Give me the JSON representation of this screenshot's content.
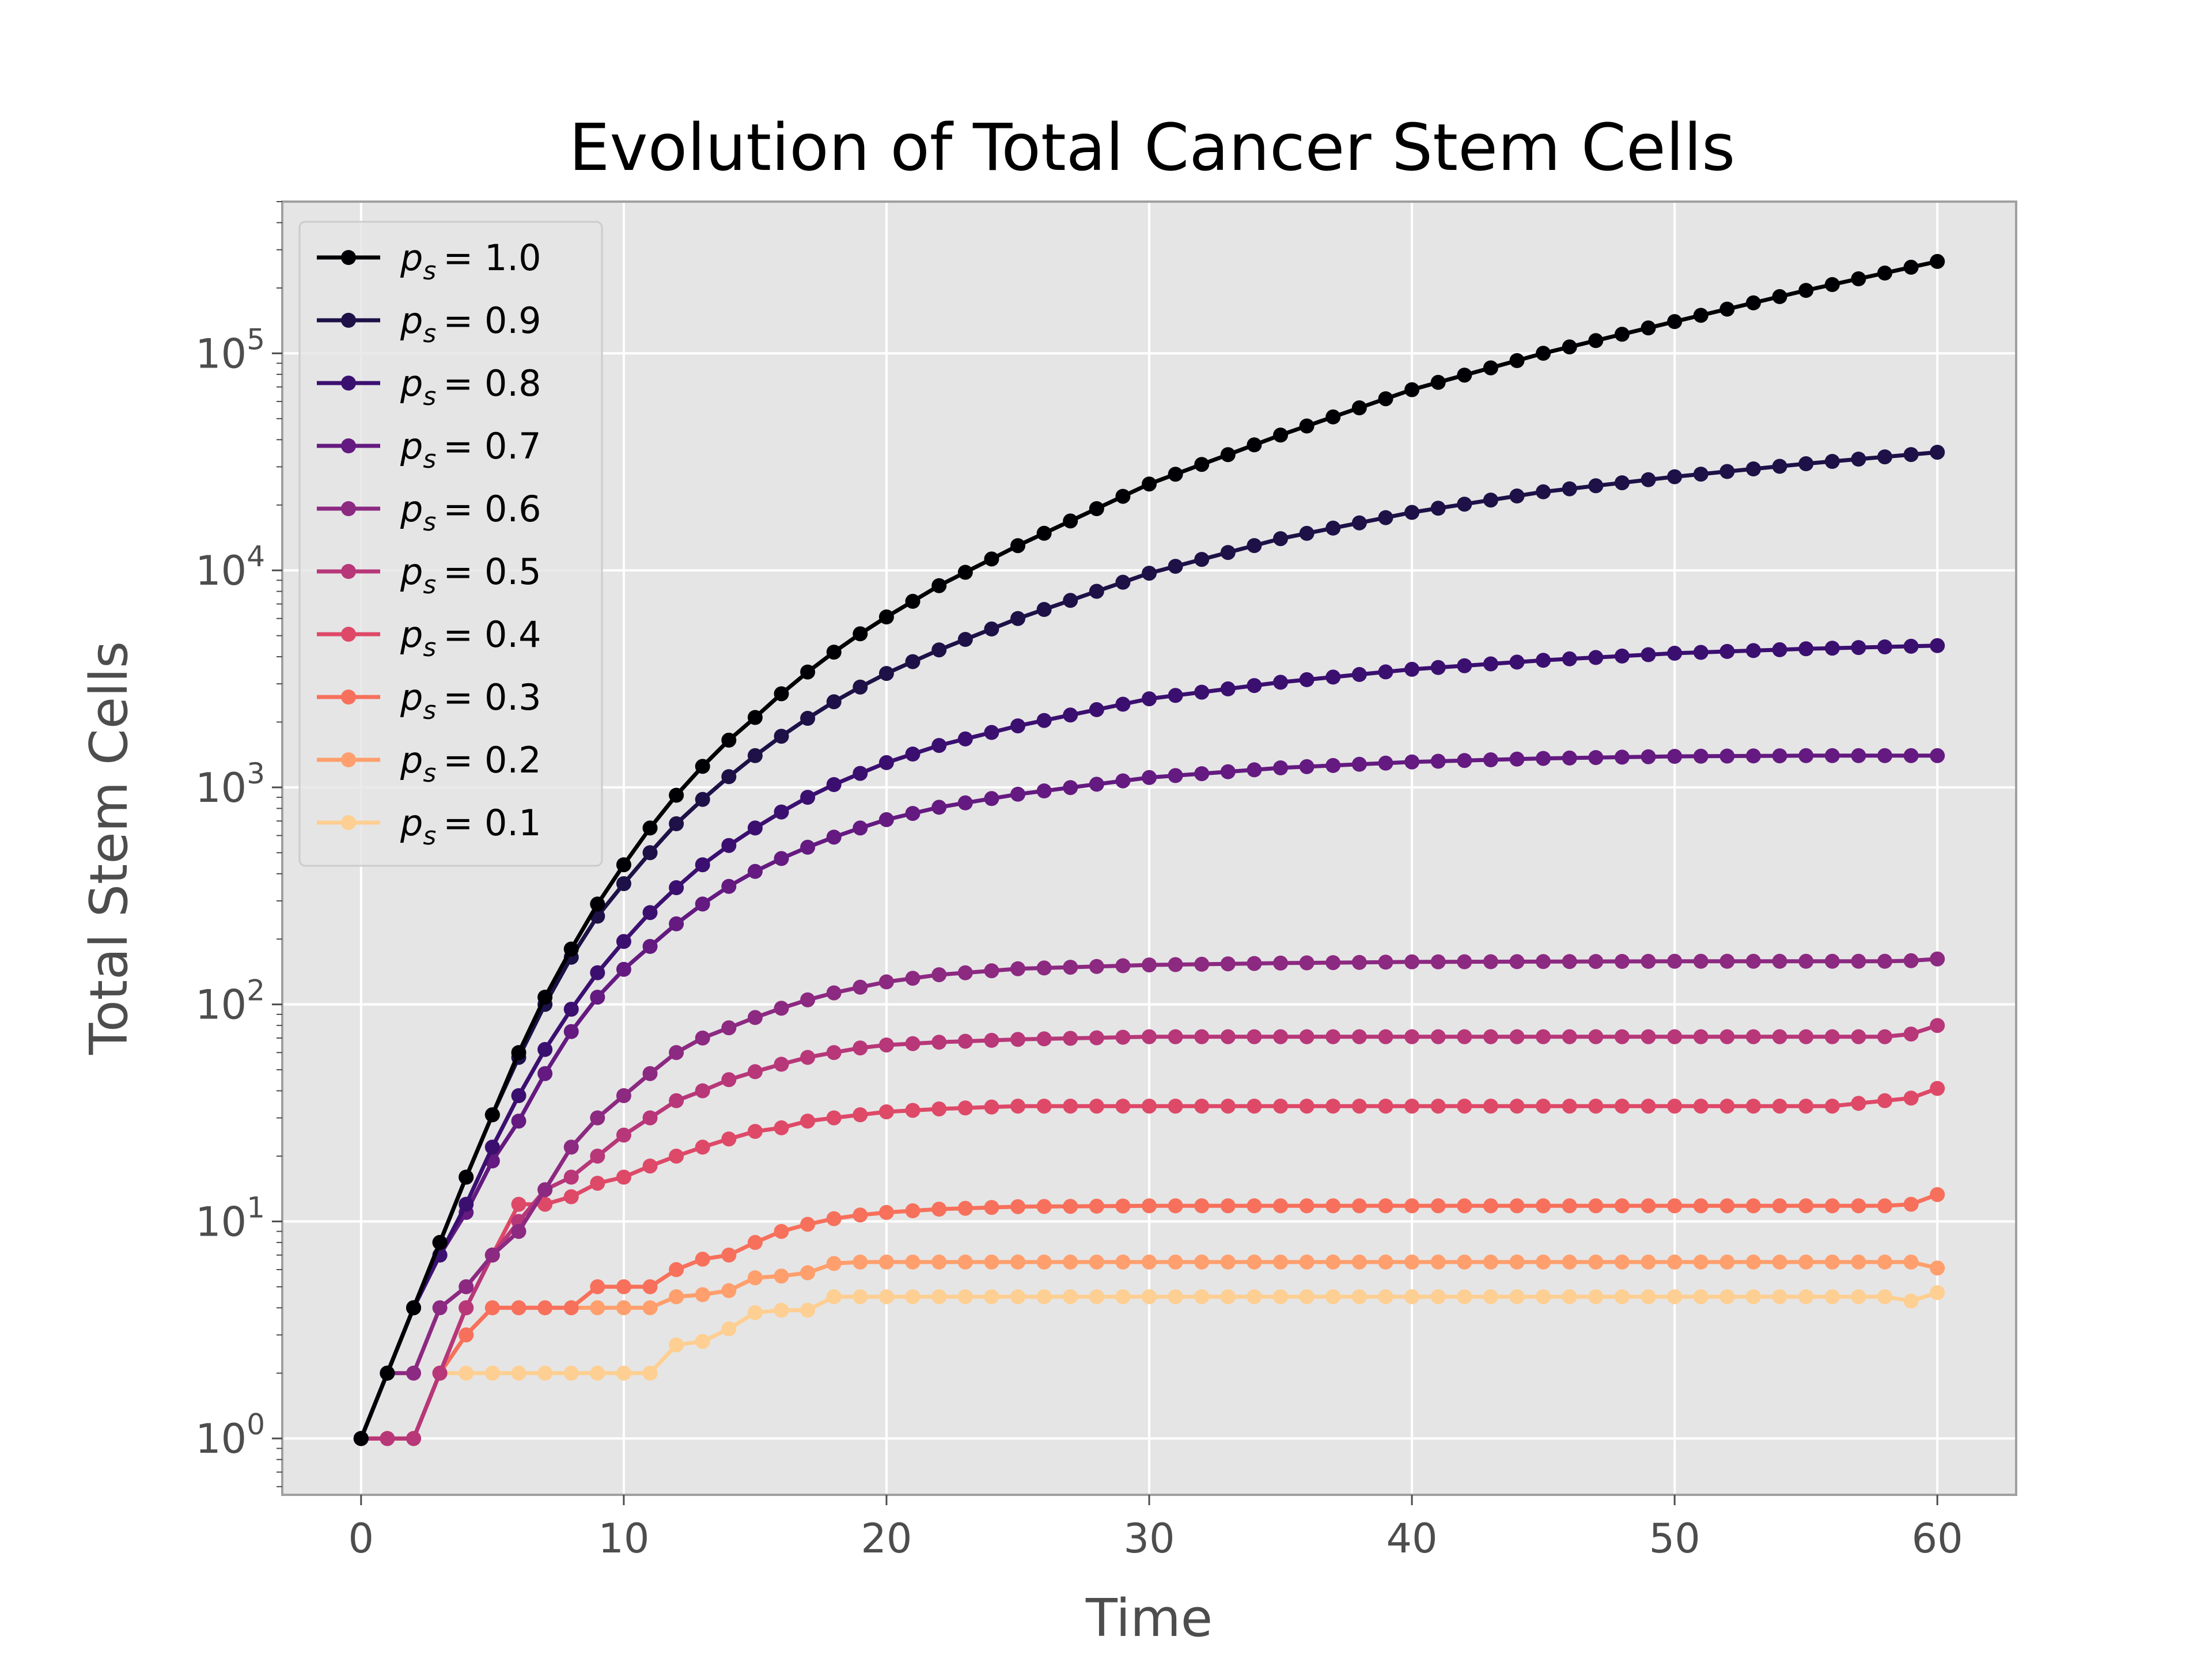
{
  "chart_data": {
    "type": "line",
    "title": "Evolution of Total Cancer Stem Cells",
    "xlabel": "Time",
    "ylabel": "Total Stem Cells",
    "xlim": [
      -3,
      63
    ],
    "ylim": [
      0.55,
      500000
    ],
    "yscale": "log",
    "grid": true,
    "legend": "upper-left",
    "x_ticks": [
      0,
      10,
      20,
      30,
      40,
      50,
      60
    ],
    "x_tick_labels": [
      "0",
      "10",
      "20",
      "30",
      "40",
      "50",
      "60"
    ],
    "y_ticks": [
      1,
      10,
      100,
      1000,
      10000,
      100000
    ],
    "y_tick_labels": [
      {
        "base": "10",
        "exp": "0"
      },
      {
        "base": "10",
        "exp": "1"
      },
      {
        "base": "10",
        "exp": "2"
      },
      {
        "base": "10",
        "exp": "3"
      },
      {
        "base": "10",
        "exp": "4"
      },
      {
        "base": "10",
        "exp": "5"
      }
    ],
    "colors": {
      "plot_bg": "#e5e5e5",
      "grid": "#ffffff",
      "axis_edge": "#a0a0a0",
      "tick_label": "#4d4d4d"
    },
    "series": [
      {
        "name": "p_s = 1.0",
        "label_var": "p",
        "label_sub": "s",
        "label_val": "= 1.0",
        "color": "#000004",
        "knots": [
          [
            0,
            1
          ],
          [
            1,
            2
          ],
          [
            2,
            4
          ],
          [
            3,
            8
          ],
          [
            4,
            16
          ],
          [
            5,
            31
          ],
          [
            6,
            60
          ],
          [
            7,
            108
          ],
          [
            8,
            180
          ],
          [
            9,
            290
          ],
          [
            10,
            440
          ],
          [
            11,
            650
          ],
          [
            12,
            920
          ],
          [
            13,
            1250
          ],
          [
            14,
            1650
          ],
          [
            15,
            2100
          ],
          [
            16,
            2700
          ],
          [
            17,
            3400
          ],
          [
            18,
            4200
          ],
          [
            19,
            5100
          ],
          [
            20,
            6100
          ],
          [
            22,
            8500
          ],
          [
            25,
            13000
          ],
          [
            30,
            25000
          ],
          [
            35,
            42000
          ],
          [
            40,
            68000
          ],
          [
            45,
            100000
          ],
          [
            50,
            140000
          ],
          [
            55,
            195000
          ],
          [
            60,
            265000
          ]
        ]
      },
      {
        "name": "p_s = 0.9",
        "label_var": "p",
        "label_sub": "s",
        "label_val": "= 0.9",
        "color": "#1d1147",
        "knots": [
          [
            0,
            1
          ],
          [
            1,
            2
          ],
          [
            2,
            4
          ],
          [
            3,
            8
          ],
          [
            4,
            16
          ],
          [
            5,
            31
          ],
          [
            6,
            57
          ],
          [
            7,
            100
          ],
          [
            8,
            165
          ],
          [
            9,
            255
          ],
          [
            10,
            360
          ],
          [
            11,
            500
          ],
          [
            12,
            680
          ],
          [
            13,
            880
          ],
          [
            14,
            1120
          ],
          [
            15,
            1400
          ],
          [
            16,
            1720
          ],
          [
            17,
            2080
          ],
          [
            18,
            2480
          ],
          [
            19,
            2900
          ],
          [
            20,
            3350
          ],
          [
            22,
            4300
          ],
          [
            25,
            6000
          ],
          [
            30,
            9700
          ],
          [
            35,
            14000
          ],
          [
            40,
            18500
          ],
          [
            45,
            23000
          ],
          [
            50,
            27000
          ],
          [
            55,
            31000
          ],
          [
            60,
            35000
          ]
        ]
      },
      {
        "name": "p_s = 0.8",
        "label_var": "p",
        "label_sub": "s",
        "label_val": "= 0.8",
        "color": "#3b0f70",
        "knots": [
          [
            0,
            1
          ],
          [
            1,
            2
          ],
          [
            2,
            4
          ],
          [
            3,
            7
          ],
          [
            4,
            12
          ],
          [
            5,
            22
          ],
          [
            6,
            38
          ],
          [
            7,
            62
          ],
          [
            8,
            95
          ],
          [
            9,
            140
          ],
          [
            10,
            195
          ],
          [
            11,
            265
          ],
          [
            12,
            345
          ],
          [
            13,
            440
          ],
          [
            14,
            540
          ],
          [
            15,
            650
          ],
          [
            16,
            770
          ],
          [
            17,
            900
          ],
          [
            18,
            1030
          ],
          [
            19,
            1160
          ],
          [
            20,
            1300
          ],
          [
            22,
            1560
          ],
          [
            25,
            1920
          ],
          [
            30,
            2560
          ],
          [
            35,
            3050
          ],
          [
            40,
            3500
          ],
          [
            45,
            3850
          ],
          [
            50,
            4150
          ],
          [
            55,
            4350
          ],
          [
            60,
            4500
          ]
        ]
      },
      {
        "name": "p_s = 0.7",
        "label_var": "p",
        "label_sub": "s",
        "label_val": "= 0.7",
        "color": "#641a80",
        "knots": [
          [
            0,
            1
          ],
          [
            1,
            2
          ],
          [
            2,
            4
          ],
          [
            3,
            7
          ],
          [
            4,
            11
          ],
          [
            5,
            19
          ],
          [
            6,
            29
          ],
          [
            7,
            48
          ],
          [
            8,
            75
          ],
          [
            9,
            108
          ],
          [
            10,
            145
          ],
          [
            11,
            185
          ],
          [
            12,
            235
          ],
          [
            13,
            290
          ],
          [
            14,
            350
          ],
          [
            15,
            410
          ],
          [
            16,
            470
          ],
          [
            17,
            530
          ],
          [
            18,
            590
          ],
          [
            19,
            650
          ],
          [
            20,
            710
          ],
          [
            22,
            810
          ],
          [
            25,
            930
          ],
          [
            30,
            1110
          ],
          [
            35,
            1230
          ],
          [
            40,
            1310
          ],
          [
            45,
            1360
          ],
          [
            50,
            1390
          ],
          [
            55,
            1400
          ],
          [
            60,
            1400
          ]
        ]
      },
      {
        "name": "p_s = 0.6",
        "label_var": "p",
        "label_sub": "s",
        "label_val": "= 0.6",
        "color": "#8c2981",
        "knots": [
          [
            0,
            1
          ],
          [
            1,
            2
          ],
          [
            2,
            2
          ],
          [
            3,
            4
          ],
          [
            4,
            5
          ],
          [
            5,
            7
          ],
          [
            6,
            9
          ],
          [
            7,
            14
          ],
          [
            8,
            22
          ],
          [
            9,
            30
          ],
          [
            10,
            38
          ],
          [
            11,
            48
          ],
          [
            12,
            60
          ],
          [
            13,
            70
          ],
          [
            14,
            78
          ],
          [
            15,
            87
          ],
          [
            16,
            96
          ],
          [
            17,
            105
          ],
          [
            18,
            113
          ],
          [
            19,
            120
          ],
          [
            20,
            127
          ],
          [
            22,
            137
          ],
          [
            25,
            146
          ],
          [
            30,
            152
          ],
          [
            35,
            155
          ],
          [
            40,
            157
          ],
          [
            50,
            158
          ],
          [
            58,
            158
          ],
          [
            59,
            159
          ],
          [
            60,
            162
          ]
        ]
      },
      {
        "name": "p_s = 0.5",
        "label_var": "p",
        "label_sub": "s",
        "label_val": "= 0.5",
        "color": "#b73779",
        "knots": [
          [
            0,
            1
          ],
          [
            1,
            1
          ],
          [
            2,
            1
          ],
          [
            3,
            2
          ],
          [
            4,
            4
          ],
          [
            5,
            7
          ],
          [
            6,
            10
          ],
          [
            7,
            14
          ],
          [
            8,
            16
          ],
          [
            9,
            20
          ],
          [
            10,
            25
          ],
          [
            11,
            30
          ],
          [
            12,
            36
          ],
          [
            13,
            40
          ],
          [
            14,
            45
          ],
          [
            15,
            49
          ],
          [
            16,
            53
          ],
          [
            17,
            57
          ],
          [
            18,
            60
          ],
          [
            19,
            63
          ],
          [
            20,
            65
          ],
          [
            22,
            67
          ],
          [
            25,
            69
          ],
          [
            30,
            71
          ],
          [
            40,
            71
          ],
          [
            50,
            71
          ],
          [
            57,
            71
          ],
          [
            58,
            71
          ],
          [
            59,
            73
          ],
          [
            60,
            80
          ]
        ]
      },
      {
        "name": "p_s = 0.4",
        "label_var": "p",
        "label_sub": "s",
        "label_val": "= 0.4",
        "color": "#de4968",
        "knots": [
          [
            0,
            1
          ],
          [
            1,
            1
          ],
          [
            2,
            1
          ],
          [
            3,
            2
          ],
          [
            4,
            4
          ],
          [
            5,
            7
          ],
          [
            6,
            12
          ],
          [
            7,
            12
          ],
          [
            8,
            13
          ],
          [
            9,
            15
          ],
          [
            10,
            16
          ],
          [
            11,
            18
          ],
          [
            12,
            20
          ],
          [
            13,
            22
          ],
          [
            14,
            24
          ],
          [
            15,
            26
          ],
          [
            16,
            27
          ],
          [
            17,
            29
          ],
          [
            18,
            30
          ],
          [
            19,
            31
          ],
          [
            20,
            32
          ],
          [
            22,
            33
          ],
          [
            25,
            34
          ],
          [
            30,
            34
          ],
          [
            40,
            34
          ],
          [
            50,
            34
          ],
          [
            56,
            34
          ],
          [
            57,
            35
          ],
          [
            58,
            36
          ],
          [
            59,
            37
          ],
          [
            60,
            41
          ]
        ]
      },
      {
        "name": "p_s = 0.3",
        "label_var": "p",
        "label_sub": "s",
        "label_val": "= 0.3",
        "color": "#f7705c",
        "knots": [
          [
            0,
            1
          ],
          [
            1,
            1
          ],
          [
            2,
            1
          ],
          [
            3,
            2
          ],
          [
            4,
            3
          ],
          [
            5,
            4
          ],
          [
            6,
            4
          ],
          [
            7,
            4
          ],
          [
            8,
            4
          ],
          [
            9,
            5
          ],
          [
            10,
            5
          ],
          [
            11,
            5
          ],
          [
            12,
            6
          ],
          [
            13,
            6.7
          ],
          [
            14,
            7
          ],
          [
            15,
            8
          ],
          [
            16,
            9
          ],
          [
            17,
            9.7
          ],
          [
            18,
            10.3
          ],
          [
            19,
            10.7
          ],
          [
            20,
            11
          ],
          [
            22,
            11.4
          ],
          [
            25,
            11.7
          ],
          [
            30,
            11.8
          ],
          [
            40,
            11.8
          ],
          [
            50,
            11.8
          ],
          [
            58,
            11.8
          ],
          [
            59,
            12
          ],
          [
            60,
            13.3
          ]
        ]
      },
      {
        "name": "p_s = 0.2",
        "label_var": "p",
        "label_sub": "s",
        "label_val": "= 0.2",
        "color": "#fe9f6d",
        "knots": [
          [
            0,
            1
          ],
          [
            1,
            1
          ],
          [
            2,
            1
          ],
          [
            3,
            2
          ],
          [
            4,
            3
          ],
          [
            5,
            4
          ],
          [
            6,
            4
          ],
          [
            7,
            4
          ],
          [
            8,
            4
          ],
          [
            9,
            4
          ],
          [
            10,
            4
          ],
          [
            11,
            4
          ],
          [
            12,
            4.5
          ],
          [
            13,
            4.6
          ],
          [
            14,
            4.8
          ],
          [
            15,
            5.5
          ],
          [
            16,
            5.6
          ],
          [
            17,
            5.8
          ],
          [
            18,
            6.4
          ],
          [
            19,
            6.5
          ],
          [
            20,
            6.5
          ],
          [
            30,
            6.5
          ],
          [
            40,
            6.5
          ],
          [
            50,
            6.5
          ],
          [
            59,
            6.5
          ],
          [
            60,
            6.1
          ]
        ]
      },
      {
        "name": "p_s = 0.1",
        "label_var": "p",
        "label_sub": "s",
        "label_val": "= 0.1",
        "color": "#fecf92",
        "knots": [
          [
            0,
            1
          ],
          [
            1,
            1
          ],
          [
            2,
            1
          ],
          [
            3,
            2
          ],
          [
            4,
            2
          ],
          [
            5,
            2
          ],
          [
            6,
            2
          ],
          [
            7,
            2
          ],
          [
            8,
            2
          ],
          [
            9,
            2
          ],
          [
            10,
            2
          ],
          [
            11,
            2
          ],
          [
            12,
            2.7
          ],
          [
            13,
            2.8
          ],
          [
            14,
            3.2
          ],
          [
            15,
            3.8
          ],
          [
            16,
            3.9
          ],
          [
            17,
            3.9
          ],
          [
            18,
            4.5
          ],
          [
            19,
            4.5
          ],
          [
            20,
            4.5
          ],
          [
            30,
            4.5
          ],
          [
            40,
            4.5
          ],
          [
            50,
            4.5
          ],
          [
            58,
            4.5
          ],
          [
            59,
            4.3
          ],
          [
            60,
            4.7
          ]
        ]
      }
    ]
  }
}
